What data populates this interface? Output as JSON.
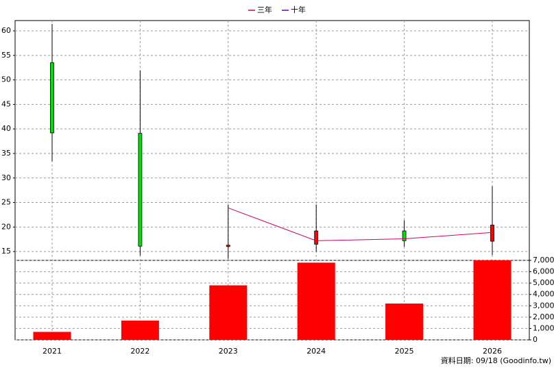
{
  "chart_data": [
    {
      "type": "candlestick",
      "open": [
        53.5,
        39.1,
        16.1,
        16.5,
        19.2,
        17.1
      ],
      "high": [
        61.4,
        51.9,
        24.6,
        24.6,
        21.4,
        28.3
      ],
      "low": [
        33.4,
        14.2,
        13.5,
        15.0,
        16.0,
        14.3
      ],
      "close": [
        39.2,
        16.1,
        16.3,
        19.2,
        17.2,
        20.4
      ],
      "up_color": "#ff0000",
      "down_color": "#00e000",
      "series": [
        {
          "name": "三年",
          "color": "#cc0066",
          "values": [
            null,
            null,
            23.9,
            17.2,
            17.6,
            18.9
          ]
        },
        {
          "name": "十年",
          "color": "#6600cc",
          "values": [
            null,
            null,
            null,
            null,
            null,
            null
          ]
        }
      ],
      "ylim": [
        13.2,
        62.1
      ],
      "yticks": [
        15,
        20,
        25,
        30,
        35,
        40,
        45,
        50,
        55,
        60
      ],
      "grid": true,
      "legend": "top"
    },
    {
      "type": "bar",
      "categories": [
        "2021",
        "2022",
        "2023",
        "2024",
        "2025",
        "2026"
      ],
      "values": [
        700,
        1700,
        4800,
        6800,
        3200,
        7000
      ],
      "color": "#ff0000",
      "ylim": [
        0,
        7000
      ],
      "yticks": [
        0,
        {
          "value": 1000,
          "label": "1,000"
        },
        {
          "value": 2000,
          "label": "2,000"
        },
        {
          "value": 3000,
          "label": "3,000"
        },
        {
          "value": 4000,
          "label": "4,000"
        },
        {
          "value": 5000,
          "label": "5,000"
        },
        {
          "value": 6000,
          "label": "6,000"
        },
        {
          "value": 7000,
          "label": "7,000"
        }
      ],
      "grid": true
    }
  ],
  "source": "資料日期: 09/18  (Goodinfo.tw)"
}
